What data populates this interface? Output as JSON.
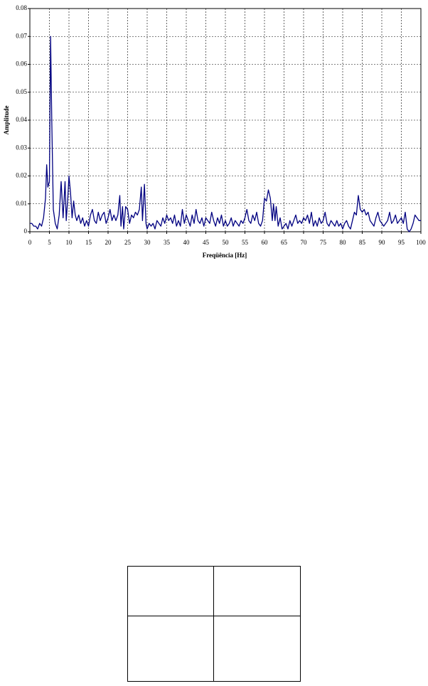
{
  "chart_data": {
    "type": "line",
    "x_label": "Freqüência [Hz]",
    "y_label": "Amplitude",
    "x": [
      0,
      0.5,
      1,
      1.5,
      2,
      2.5,
      3,
      3.5,
      4,
      4.3,
      4.6,
      5,
      5.3,
      5.6,
      6,
      6.5,
      7,
      7.5,
      8,
      8.5,
      9,
      9.3,
      9.7,
      10,
      10.4,
      10.8,
      11.2,
      11.6,
      12,
      12.5,
      13,
      13.5,
      14,
      14.5,
      15,
      15.5,
      16,
      16.5,
      17,
      17.5,
      18,
      18.5,
      19,
      19.5,
      20,
      20.5,
      21,
      21.5,
      22,
      22.5,
      23,
      23.3,
      23.7,
      24,
      24.5,
      25,
      25.5,
      26,
      26.5,
      27,
      27.5,
      28,
      28.5,
      28.8,
      29.3,
      29.7,
      30,
      30.5,
      31,
      31.5,
      32,
      32.5,
      33,
      33.5,
      34,
      34.5,
      35,
      35.5,
      36,
      36.5,
      37,
      37.5,
      38,
      38.5,
      39,
      39.5,
      40,
      40.5,
      41,
      41.5,
      42,
      42.5,
      43,
      43.5,
      44,
      44.5,
      45,
      45.5,
      46,
      46.5,
      47,
      47.5,
      48,
      48.5,
      49,
      49.5,
      50,
      50.5,
      51,
      51.5,
      52,
      52.5,
      53,
      53.5,
      54,
      54.5,
      55,
      55.5,
      56,
      56.5,
      57,
      57.5,
      58,
      58.5,
      59,
      59.5,
      60,
      60.5,
      61,
      61.5,
      62,
      62.3,
      62.7,
      63,
      63.5,
      64,
      64.5,
      65,
      65.5,
      66,
      66.5,
      67,
      67.5,
      68,
      68.5,
      69,
      69.5,
      70,
      70.5,
      71,
      71.5,
      72,
      72.5,
      73,
      73.5,
      74,
      74.5,
      75,
      75.5,
      76,
      76.5,
      77,
      77.5,
      78,
      78.5,
      79,
      79.5,
      80,
      80.5,
      81,
      81.5,
      82,
      82.5,
      83,
      83.5,
      84,
      84.5,
      85,
      85.5,
      86,
      86.5,
      87,
      87.5,
      88,
      88.5,
      89,
      89.5,
      90,
      90.5,
      91,
      91.5,
      92,
      92.5,
      93,
      93.5,
      94,
      94.5,
      95,
      95.5,
      96,
      96.5,
      97,
      97.5,
      98,
      98.5,
      99,
      99.5,
      100
    ],
    "series": [
      {
        "color": "#000080",
        "values": [
          0.003,
          0.003,
          0.002,
          0.002,
          0.001,
          0.003,
          0.002,
          0.005,
          0.012,
          0.024,
          0.016,
          0.018,
          0.07,
          0.04,
          0.008,
          0.003,
          0.001,
          0.006,
          0.018,
          0.005,
          0.018,
          0.004,
          0.012,
          0.02,
          0.014,
          0.005,
          0.011,
          0.006,
          0.004,
          0.006,
          0.003,
          0.005,
          0.002,
          0.004,
          0.002,
          0.006,
          0.008,
          0.004,
          0.003,
          0.007,
          0.004,
          0.006,
          0.007,
          0.003,
          0.005,
          0.008,
          0.004,
          0.006,
          0.004,
          0.006,
          0.013,
          0.002,
          0.009,
          0.001,
          0.009,
          0.008,
          0.003,
          0.006,
          0.005,
          0.007,
          0.006,
          0.008,
          0.016,
          0.004,
          0.017,
          0.003,
          0.001,
          0.003,
          0.002,
          0.003,
          0.001,
          0.004,
          0.003,
          0.002,
          0.005,
          0.003,
          0.006,
          0.004,
          0.005,
          0.003,
          0.006,
          0.002,
          0.004,
          0.002,
          0.008,
          0.003,
          0.006,
          0.004,
          0.002,
          0.006,
          0.003,
          0.008,
          0.004,
          0.003,
          0.005,
          0.002,
          0.005,
          0.004,
          0.003,
          0.007,
          0.004,
          0.002,
          0.005,
          0.003,
          0.006,
          0.002,
          0.004,
          0.002,
          0.003,
          0.005,
          0.002,
          0.004,
          0.003,
          0.002,
          0.004,
          0.003,
          0.005,
          0.008,
          0.004,
          0.003,
          0.006,
          0.004,
          0.007,
          0.003,
          0.002,
          0.004,
          0.012,
          0.011,
          0.015,
          0.012,
          0.004,
          0.01,
          0.004,
          0.009,
          0.002,
          0.005,
          0.001,
          0.002,
          0.003,
          0.001,
          0.004,
          0.002,
          0.004,
          0.006,
          0.003,
          0.004,
          0.003,
          0.005,
          0.004,
          0.006,
          0.003,
          0.007,
          0.002,
          0.004,
          0.002,
          0.005,
          0.003,
          0.004,
          0.007,
          0.003,
          0.002,
          0.004,
          0.003,
          0.002,
          0.004,
          0.002,
          0.003,
          0.001,
          0.003,
          0.004,
          0.002,
          0.001,
          0.004,
          0.007,
          0.006,
          0.013,
          0.008,
          0.007,
          0.008,
          0.006,
          0.007,
          0.004,
          0.003,
          0.002,
          0.005,
          0.007,
          0.004,
          0.003,
          0.002,
          0.003,
          0.004,
          0.007,
          0.003,
          0.004,
          0.006,
          0.003,
          0.004,
          0.005,
          0.003,
          0.007,
          0.001,
          0.0,
          0.001,
          0.003,
          0.006,
          0.005,
          0.004,
          0.004
        ]
      }
    ],
    "xlim": [
      0,
      100
    ],
    "xticks": [
      0,
      5,
      10,
      15,
      20,
      25,
      30,
      35,
      40,
      45,
      50,
      55,
      60,
      65,
      70,
      75,
      80,
      85,
      90,
      95,
      100
    ],
    "ylim": [
      0,
      0.08
    ],
    "yticks": [
      0,
      0.01,
      0.02,
      0.03,
      0.04,
      0.05,
      0.06,
      0.07,
      0.08
    ],
    "grid": true
  }
}
